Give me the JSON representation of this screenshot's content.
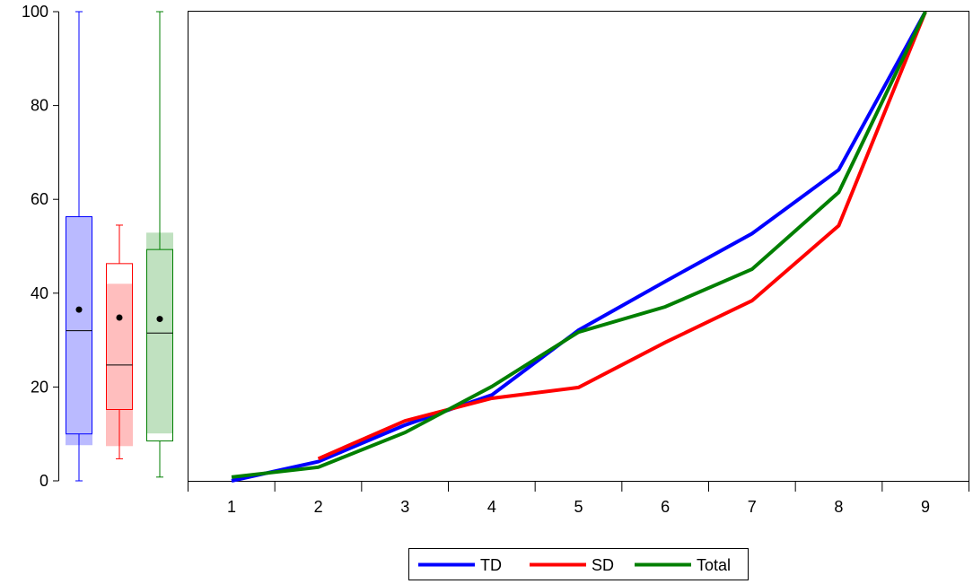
{
  "chart_data": [
    {
      "type": "box",
      "ylim": [
        0,
        100
      ],
      "y_ticks": [
        "0",
        "20",
        "40",
        "60",
        "80",
        "100"
      ],
      "boxes": [
        {
          "name": "TD",
          "color": "#0000ff",
          "fill": "#c6c6ff",
          "ci_fill": "#aeaeff",
          "min": 0,
          "q1": 10,
          "median": 32,
          "q3": 56.3,
          "max": 100,
          "mean": 36.5,
          "ci": [
            7.6,
            56.3
          ]
        },
        {
          "name": "SD",
          "color": "#ff0000",
          "fill": "#ffc9c9",
          "ci_fill": "#ffb3b3",
          "min": 4.7,
          "q1": 15.2,
          "median": 24.7,
          "q3": 46.3,
          "max": 54.5,
          "mean": 34.8,
          "ci": [
            7.4,
            42
          ]
        },
        {
          "name": "Total",
          "color": "#007f00",
          "fill": "#c9e6c9",
          "ci_fill": "#b5dcb5",
          "min": 0.8,
          "q1": 8.5,
          "median": 31.5,
          "q3": 49.3,
          "max": 100,
          "mean": 34.5,
          "ci": [
            10.1,
            52.9
          ]
        }
      ]
    },
    {
      "type": "line",
      "x": [
        "1",
        "2",
        "3",
        "4",
        "5",
        "6",
        "7",
        "8",
        "9"
      ],
      "ylim": [
        0,
        100
      ],
      "series": [
        {
          "name": "TD",
          "color": "#0000ff",
          "values": [
            0,
            4.1,
            11.9,
            18.3,
            32.1,
            42.5,
            52.7,
            66.3,
            100
          ]
        },
        {
          "name": "SD",
          "color": "#ff0000",
          "values": [
            null,
            4.7,
            12.8,
            17.6,
            19.9,
            29.5,
            38.4,
            54.4,
            100
          ]
        },
        {
          "name": "Total",
          "color": "#007f00",
          "values": [
            0.8,
            2.9,
            10.3,
            20.1,
            31.7,
            37.1,
            45.1,
            61.5,
            100
          ]
        }
      ],
      "legend_position": "bottom"
    }
  ]
}
